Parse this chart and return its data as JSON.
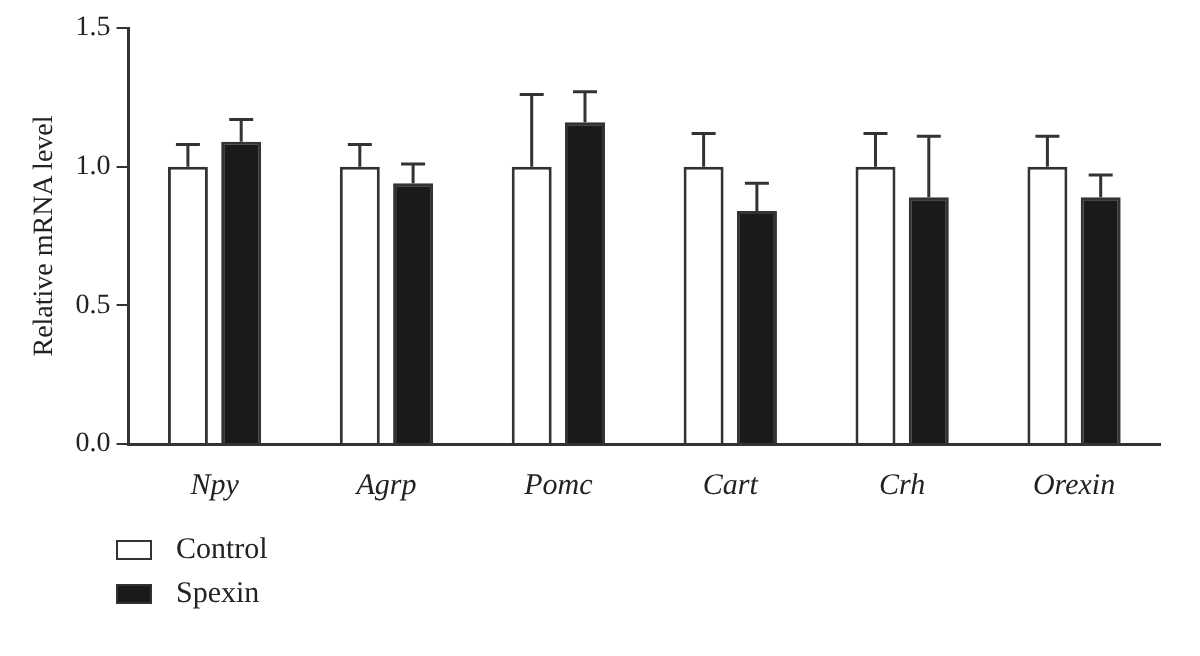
{
  "chart_data": {
    "type": "bar",
    "ylabel": "Relative mRNA level",
    "categories": [
      "Npy",
      "Agrp",
      "Pomc",
      "Cart",
      "Crh",
      "Orexin"
    ],
    "series": [
      {
        "name": "Control",
        "color": "#ffffff",
        "values": [
          1.0,
          1.0,
          1.0,
          1.0,
          1.0,
          1.0
        ],
        "errors": [
          [
            1.0,
            1.08
          ],
          [
            1.0,
            1.08
          ],
          [
            1.0,
            1.26
          ],
          [
            1.0,
            1.12
          ],
          [
            1.0,
            1.12
          ],
          [
            1.0,
            1.11
          ]
        ]
      },
      {
        "name": "Spexin",
        "color": "#1a1a1a",
        "values": [
          1.09,
          0.94,
          1.16,
          0.84,
          0.89,
          0.89
        ],
        "errors": [
          [
            1.09,
            1.17
          ],
          [
            0.94,
            1.01
          ],
          [
            1.16,
            1.27
          ],
          [
            0.84,
            0.94
          ],
          [
            0.89,
            1.11
          ],
          [
            0.89,
            0.97
          ]
        ]
      }
    ],
    "ylim": [
      0,
      1.5
    ],
    "yticks": [
      {
        "value": 0,
        "label": "0.0"
      },
      {
        "value": 0.5,
        "label": "0.5"
      },
      {
        "value": 1,
        "label": "1.0"
      },
      {
        "value": 1.5,
        "label": "1.5"
      }
    ],
    "grid": false,
    "legend": "bottom left"
  }
}
